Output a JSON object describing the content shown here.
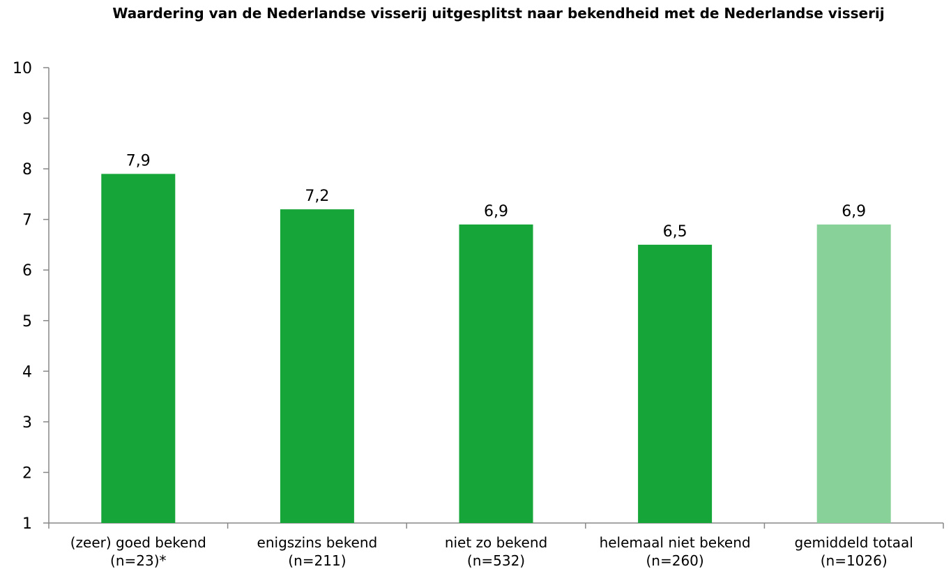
{
  "chart_data": {
    "type": "bar",
    "title": "Waardering van de Nederlandse visserij uitgesplitst naar bekendheid met de Nederlandse visserij",
    "categories": [
      [
        "(zeer) goed bekend",
        "(n=23)*"
      ],
      [
        "enigszins bekend",
        "(n=211)"
      ],
      [
        "niet zo bekend",
        "(n=532)"
      ],
      [
        "helemaal niet bekend",
        "(n=260)"
      ],
      [
        "gemiddeld totaal",
        "(n=1026)"
      ]
    ],
    "values": [
      7.9,
      7.2,
      6.9,
      6.5,
      6.9
    ],
    "data_labels": [
      "7,9",
      "7,2",
      "6,9",
      "6,5",
      "6,9"
    ],
    "bar_colors": [
      "#16a538",
      "#16a538",
      "#16a538",
      "#16a538",
      "#88d198"
    ],
    "ylim": [
      1,
      10
    ],
    "yticks": [
      1,
      2,
      3,
      4,
      5,
      6,
      7,
      8,
      9,
      10
    ],
    "xlabel": "",
    "ylabel": "",
    "grid": false,
    "legend": "none",
    "axis_color": "#878787"
  }
}
